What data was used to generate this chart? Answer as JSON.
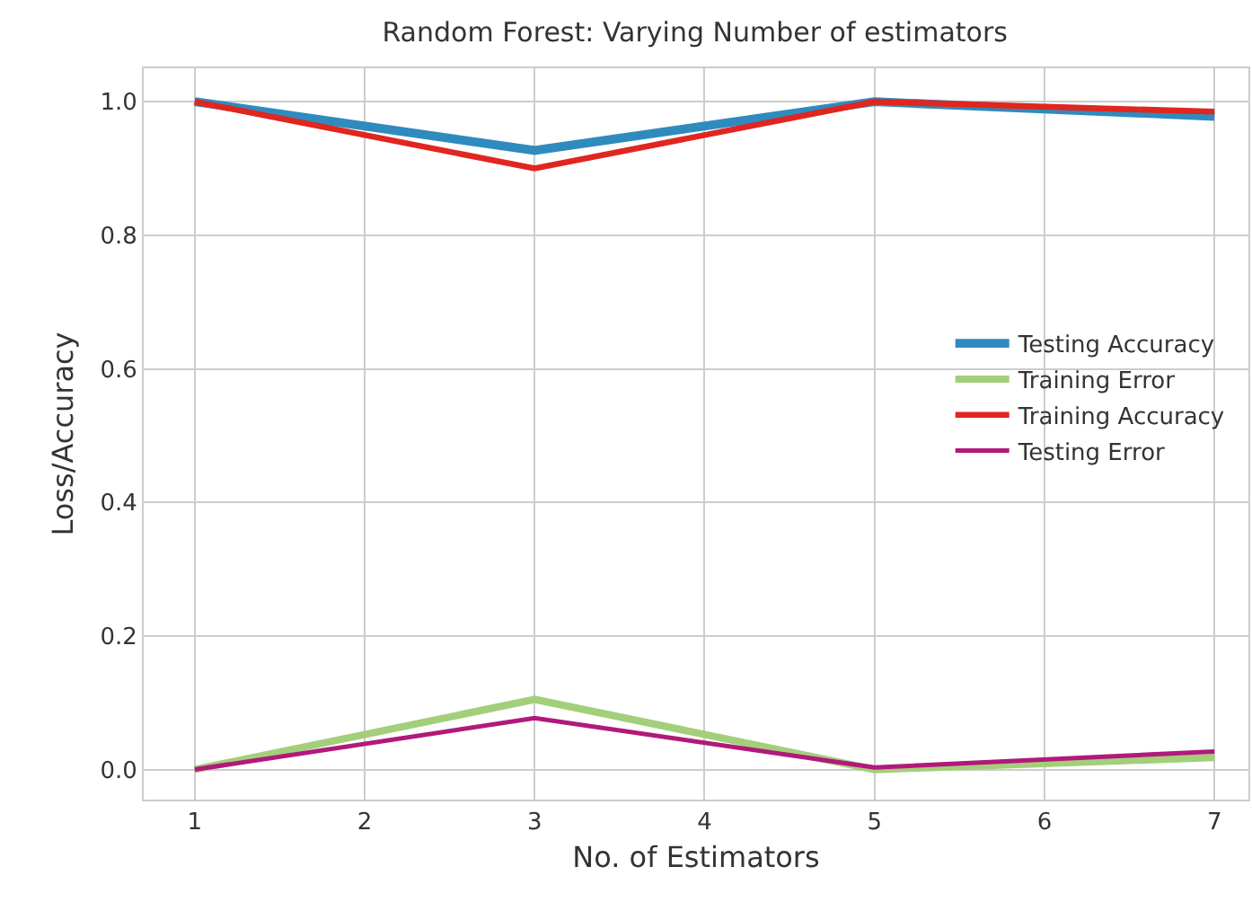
{
  "chart_data": {
    "type": "line",
    "title": "Random Forest: Varying Number of estimators",
    "xlabel": "No. of Estimators",
    "ylabel": "Loss/Accuracy",
    "x": [
      1,
      3,
      5,
      7
    ],
    "series": [
      {
        "name": "Testing Accuracy",
        "color": "#2f8bbd",
        "values": [
          1.0,
          0.927,
          1.0,
          0.978
        ]
      },
      {
        "name": "Training Error",
        "color": "#a3cf7b",
        "values": [
          0.0,
          0.105,
          0.0,
          0.018
        ]
      },
      {
        "name": "Training Accuracy",
        "color": "#e0261f",
        "values": [
          1.0,
          0.9,
          1.0,
          0.985
        ]
      },
      {
        "name": "Testing Error",
        "color": "#b1197a",
        "values": [
          0.0,
          0.077,
          0.003,
          0.027
        ]
      }
    ],
    "xlim": [
      0.7,
      7.2
    ],
    "xticks": [
      1,
      2,
      3,
      4,
      5,
      6,
      7
    ],
    "ylim": [
      -0.045,
      1.05
    ],
    "yticks": [
      {
        "value": 0,
        "label": "0.0"
      },
      {
        "value": 0.2,
        "label": "0.2"
      },
      {
        "value": 0.4,
        "label": "0.4"
      },
      {
        "value": 0.6,
        "label": "0.6"
      },
      {
        "value": 0.8,
        "label": "0.8"
      },
      {
        "value": 1,
        "label": "1.0"
      }
    ],
    "grid": true,
    "legend": "right",
    "marker": "none",
    "line_style": "solid"
  }
}
